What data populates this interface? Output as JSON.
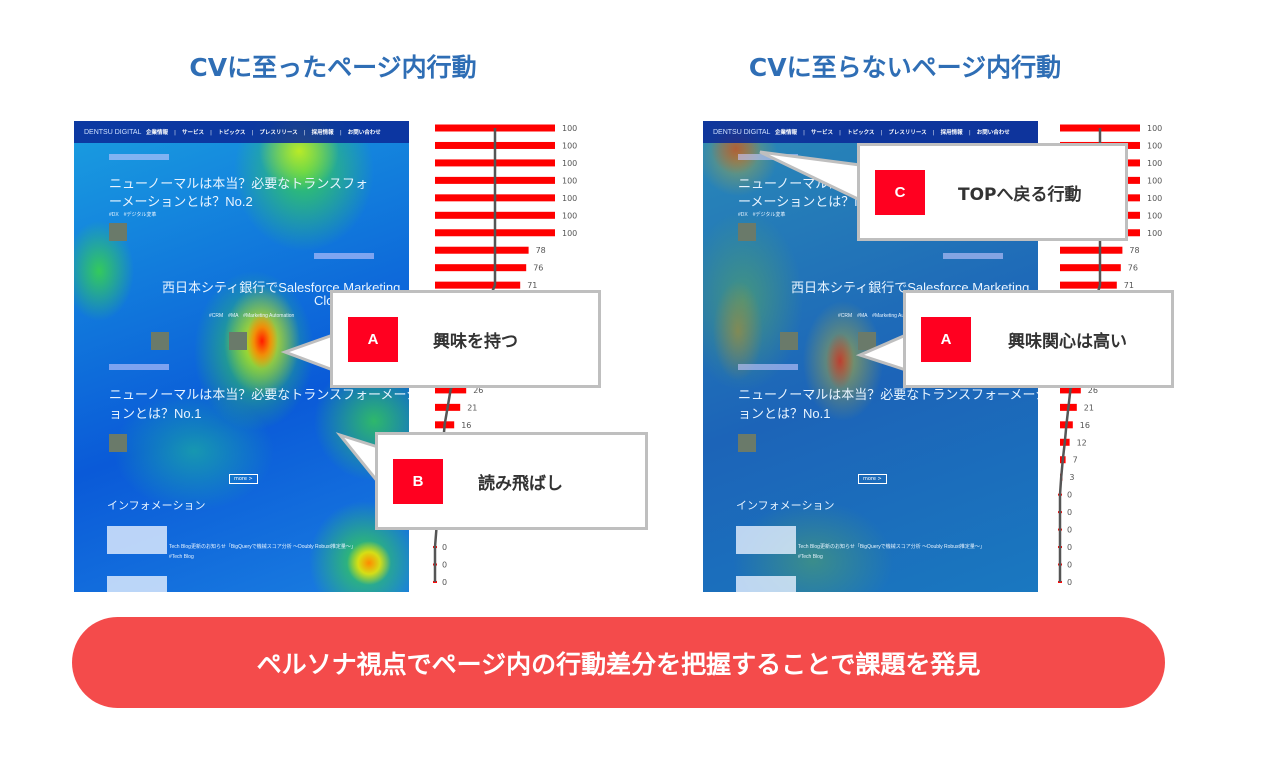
{
  "titles": {
    "left": "CVに至ったページ内行動",
    "right": "CVに至らないページ内行動"
  },
  "site": {
    "logo": "DENTSU DIGITAL",
    "nav": [
      "企業情報",
      "サービス",
      "トピックス",
      "プレスリリース",
      "採用情報",
      "お問い合わせ"
    ],
    "article1_title_line1": "ニューノーマルは本当？必要なトランスフォ",
    "article1_title_line2": "ーメーションとは？No.2",
    "tags1": "#DX　#デジタル変革",
    "article2_title_line1": "西日本シティ銀行でSalesforce Marketing",
    "article2_title_line2": "Clo",
    "tags2": "#CRM　#MA　#Marketing Automation",
    "article3_title_line1": "ニューノーマルは本当？必要なトランスフォーメーシ",
    "article3_title_line2": "ョンとは？No.1",
    "more": "more >",
    "info_heading": "インフォメーション",
    "info_tag": "NEW",
    "info_item": "Tech Blog更新のお知らせ「BigQueryで機械スコア分析 ～Doubly Robust推定量～」",
    "info_hashtag": "#Tech Blog"
  },
  "heatmap_colors": {
    "cold": "#0a5ad8",
    "cool": "#1fb0d0",
    "warm": "#3fdc3a",
    "hot": "#ff1a00"
  },
  "chart_data": [
    {
      "type": "bar",
      "orientation": "horizontal",
      "panel": "left",
      "bar_color": "#ff0000",
      "values": [
        100,
        100,
        100,
        100,
        100,
        100,
        100,
        78,
        76,
        71,
        null,
        null,
        null,
        null,
        null,
        26,
        21,
        16,
        null,
        null,
        null,
        null,
        null,
        null,
        0,
        0,
        0
      ],
      "xlim": [
        0,
        100
      ]
    },
    {
      "type": "bar",
      "orientation": "horizontal",
      "panel": "right",
      "bar_color": "#ff0000",
      "values": [
        100,
        100,
        100,
        100,
        100,
        100,
        100,
        78,
        76,
        71,
        null,
        null,
        null,
        null,
        null,
        26,
        21,
        16,
        12,
        7,
        3,
        0,
        0,
        0,
        0,
        0,
        0
      ],
      "xlim": [
        0,
        100
      ]
    }
  ],
  "callouts": {
    "left_a": {
      "badge": "A",
      "text": "興味を持つ"
    },
    "left_b": {
      "badge": "B",
      "text": "読み飛ばし"
    },
    "right_c": {
      "badge": "C",
      "text": "TOPへ戻る行動"
    },
    "right_a": {
      "badge": "A",
      "text": "興味関心は高い"
    }
  },
  "banner": "ペルソナ視点でページ内の行動差分を把握することで課題を発見",
  "banner_color": "#f44b4b",
  "title_color": "#2f6eb5"
}
